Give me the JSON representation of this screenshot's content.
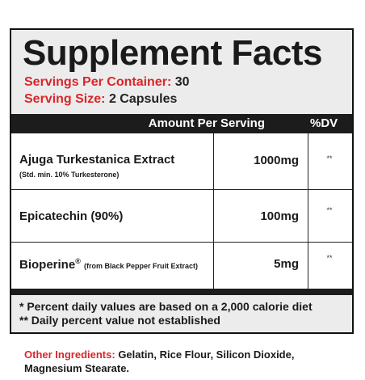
{
  "title": "Supplement Facts",
  "servings": [
    {
      "label": "Servings Per Container:",
      "value": "30"
    },
    {
      "label": "Serving Size:",
      "value": "2 Capsules"
    }
  ],
  "table": {
    "header": [
      "Amount Per Serving",
      "%DV"
    ],
    "rows": [
      {
        "name": "Ajuga Turkestanica Extract",
        "note": "(Std. min. 10% Turkesterone)",
        "amount": "1000mg",
        "dv": "**"
      },
      {
        "name": "Epicatechin (90%)",
        "amount": "100mg",
        "dv": "**"
      },
      {
        "name": "Bioperine",
        "mark": "®",
        "note": "(from Black Pepper Fruit Extract)",
        "amount": "5mg",
        "dv": "**"
      }
    ]
  },
  "footnotes": [
    "* Percent daily values are based on a 2,000 calorie diet",
    "** Daily percent value not established"
  ],
  "other_ingredients": {
    "label": "Other Ingredients:",
    "text": "Gelatin, Rice Flour, Silicon Dioxide, Magnesium Stearate."
  }
}
